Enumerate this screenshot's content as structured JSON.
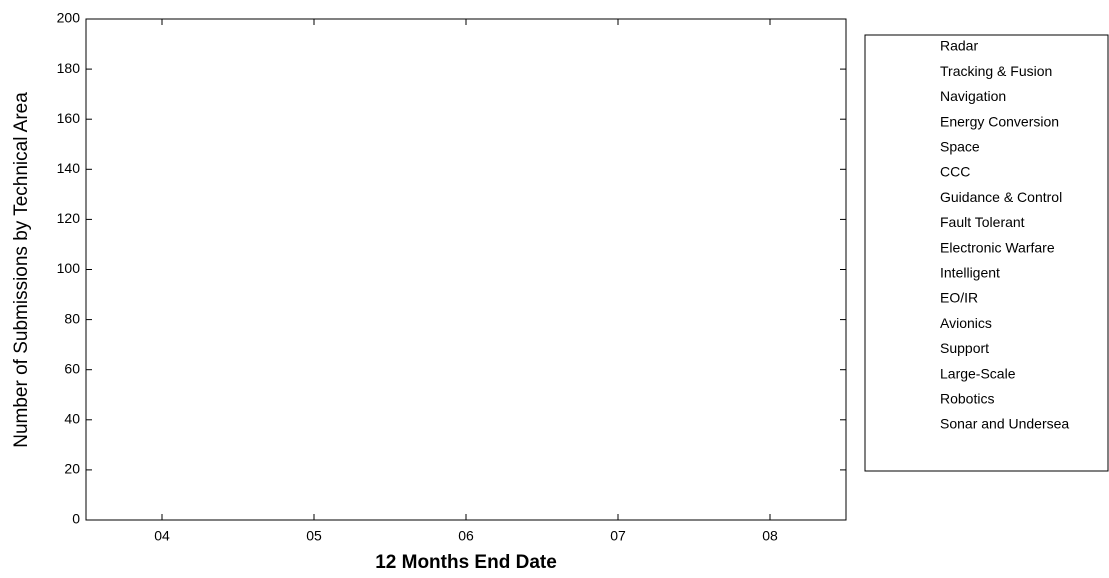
{
  "chart_data": {
    "type": "line",
    "xlabel": "12 Months End Date",
    "ylabel": "Number of Submissions by Technical Area",
    "categories": [
      "04",
      "05",
      "06",
      "07",
      "08"
    ],
    "ylim": [
      0,
      200
    ],
    "yticks": [
      0,
      20,
      40,
      60,
      80,
      100,
      120,
      140,
      160,
      180,
      200
    ],
    "legend": "right",
    "series": [
      {
        "name": "Radar",
        "values": [
          null,
          null,
          null,
          null,
          null
        ]
      },
      {
        "name": "Tracking & Fusion",
        "values": [
          null,
          null,
          null,
          null,
          null
        ]
      },
      {
        "name": "Navigation",
        "values": [
          null,
          null,
          null,
          null,
          null
        ]
      },
      {
        "name": "Energy Conversion",
        "values": [
          null,
          null,
          null,
          null,
          null
        ]
      },
      {
        "name": "Space",
        "values": [
          null,
          null,
          null,
          null,
          null
        ]
      },
      {
        "name": "CCC",
        "values": [
          null,
          null,
          null,
          null,
          null
        ]
      },
      {
        "name": "Guidance & Control",
        "values": [
          null,
          null,
          null,
          null,
          null
        ]
      },
      {
        "name": "Fault Tolerant",
        "values": [
          null,
          null,
          null,
          null,
          null
        ]
      },
      {
        "name": "Electronic Warfare",
        "values": [
          null,
          null,
          null,
          null,
          null
        ]
      },
      {
        "name": "Intelligent",
        "values": [
          null,
          null,
          null,
          null,
          null
        ]
      },
      {
        "name": "EO/IR",
        "values": [
          null,
          null,
          null,
          null,
          null
        ]
      },
      {
        "name": "Avionics",
        "values": [
          null,
          null,
          null,
          null,
          null
        ]
      },
      {
        "name": "Support",
        "values": [
          null,
          null,
          null,
          null,
          null
        ]
      },
      {
        "name": "Large-Scale",
        "values": [
          null,
          null,
          null,
          null,
          null
        ]
      },
      {
        "name": "Robotics",
        "values": [
          null,
          null,
          null,
          null,
          null
        ]
      },
      {
        "name": "Sonar and Undersea",
        "values": [
          null,
          null,
          null,
          null,
          null
        ]
      }
    ]
  }
}
